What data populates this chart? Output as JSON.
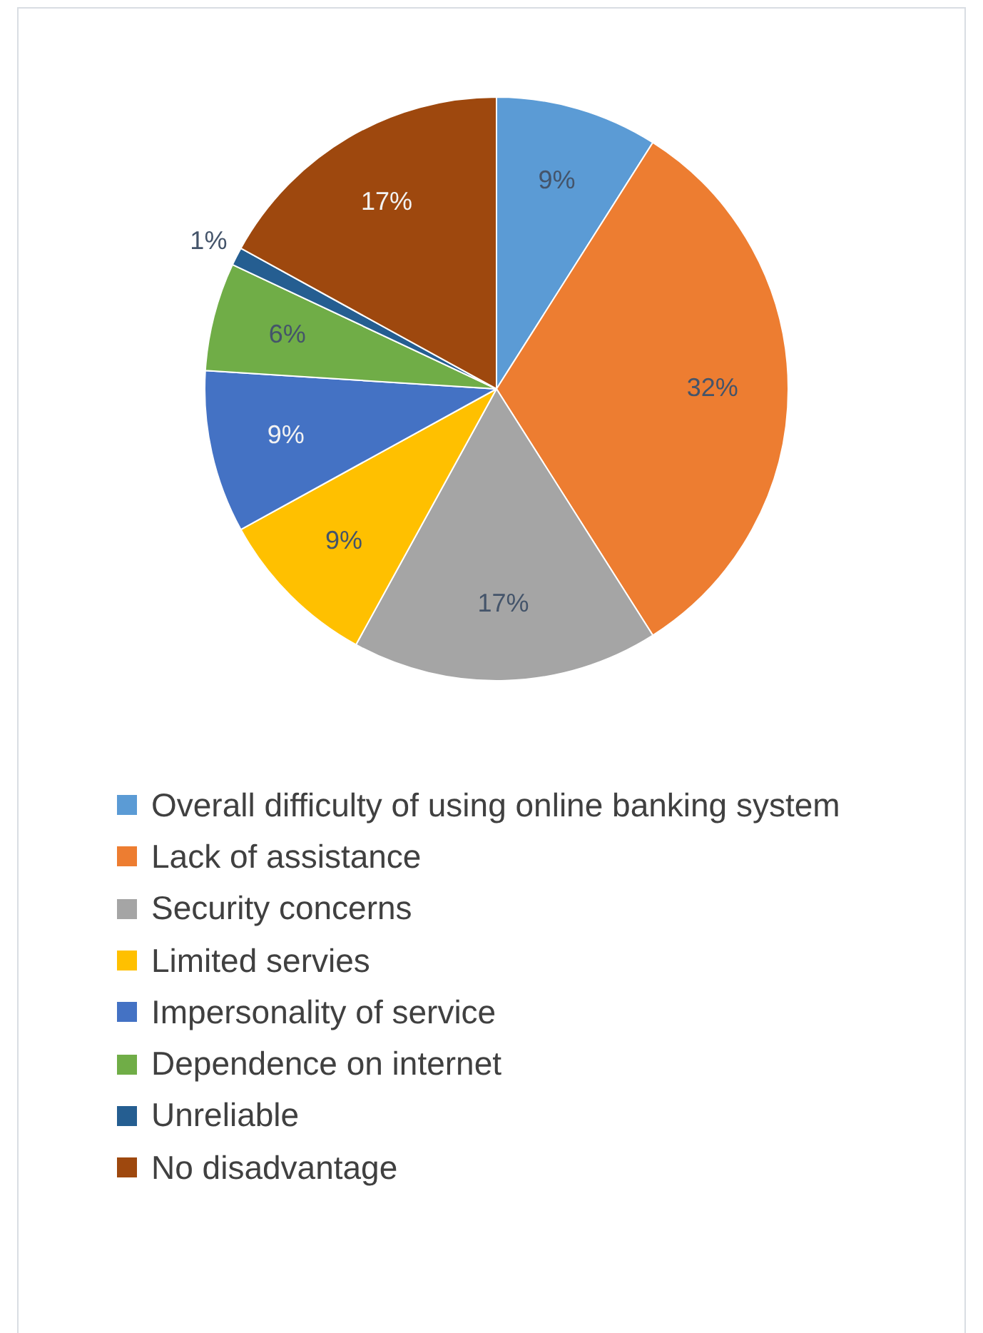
{
  "chart_data": {
    "type": "pie",
    "categories": [
      "Overall difficulty of using online banking system",
      "Lack of assistance",
      "Security concerns",
      "Limited servies",
      "Impersonality of service",
      "Dependence on internet",
      "Unreliable",
      "No disadvantage"
    ],
    "values": [
      9,
      32,
      17,
      9,
      9,
      6,
      1,
      17
    ],
    "colors": [
      "#5b9bd5",
      "#ed7d31",
      "#a5a5a5",
      "#ffc000",
      "#4472c4",
      "#70ad47",
      "#255e91",
      "#9e480e"
    ],
    "value_labels": [
      "9%",
      "32%",
      "17%",
      "9%",
      "9%",
      "6%",
      "1%",
      "17%"
    ],
    "legend": "bottom"
  }
}
